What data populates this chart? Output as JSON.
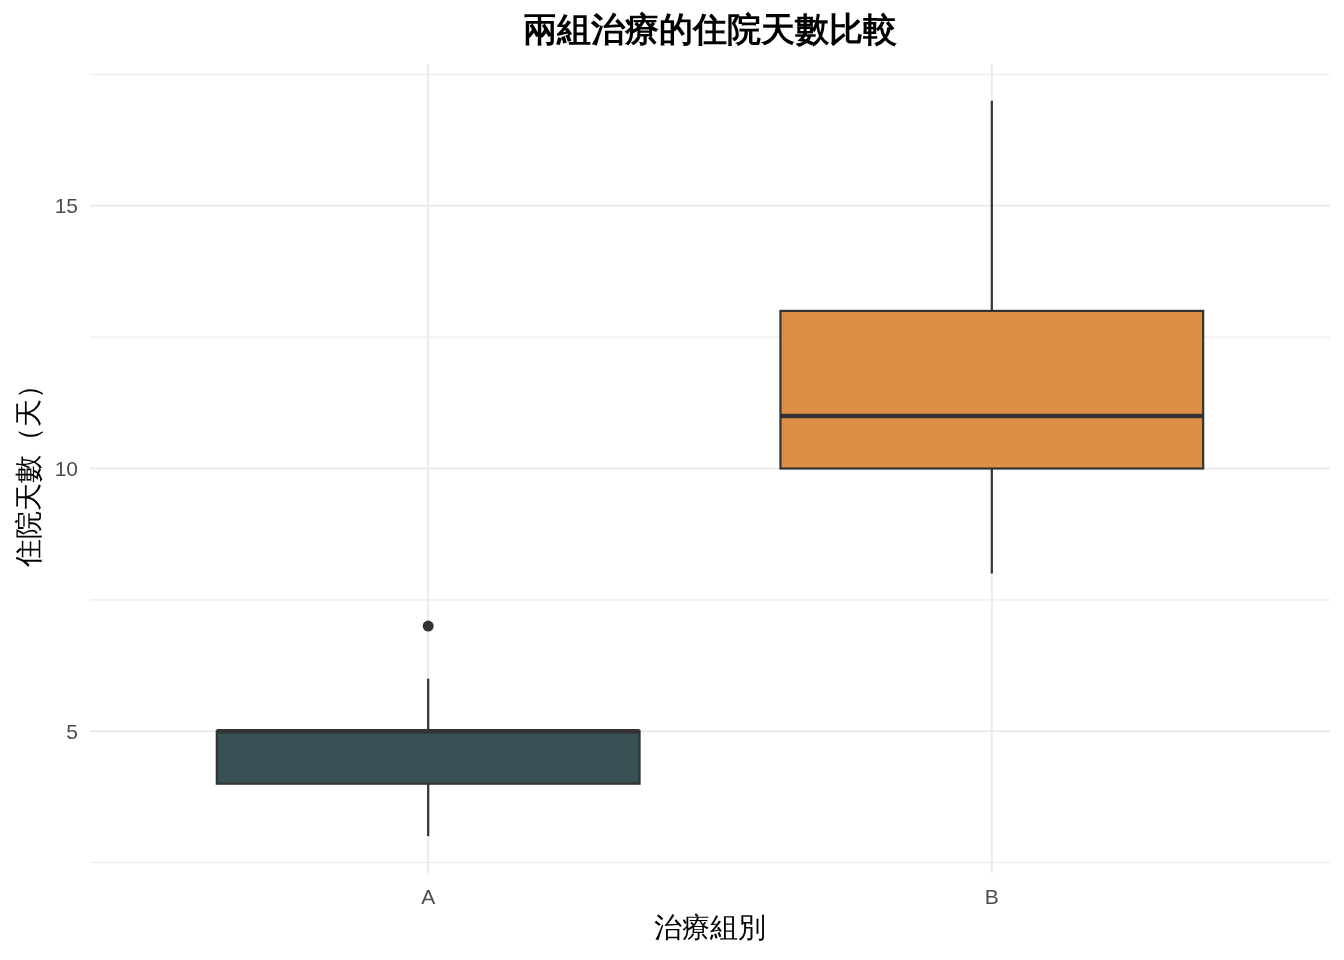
{
  "chart_data": {
    "type": "box",
    "title": "兩組治療的住院天數比較",
    "xlabel": "治療組別",
    "ylabel": "住院天數（天）",
    "categories": [
      "A",
      "B"
    ],
    "colors": [
      "#384f54",
      "#de8f45"
    ],
    "boxes": [
      {
        "low": 3,
        "q1": 4,
        "median": 5,
        "q3": 5,
        "high": 6,
        "outliers": [
          7
        ]
      },
      {
        "low": 8,
        "q1": 10,
        "median": 11,
        "q3": 13,
        "high": 17
      }
    ],
    "ylim": [
      2.3,
      17.7
    ],
    "yticks": [
      {
        "value": 2.5,
        "label": null
      },
      5,
      {
        "value": 7.5,
        "label": null
      },
      10,
      {
        "value": 12.5,
        "label": null
      },
      15,
      {
        "value": 17.5,
        "label": null
      }
    ],
    "grid": true
  }
}
